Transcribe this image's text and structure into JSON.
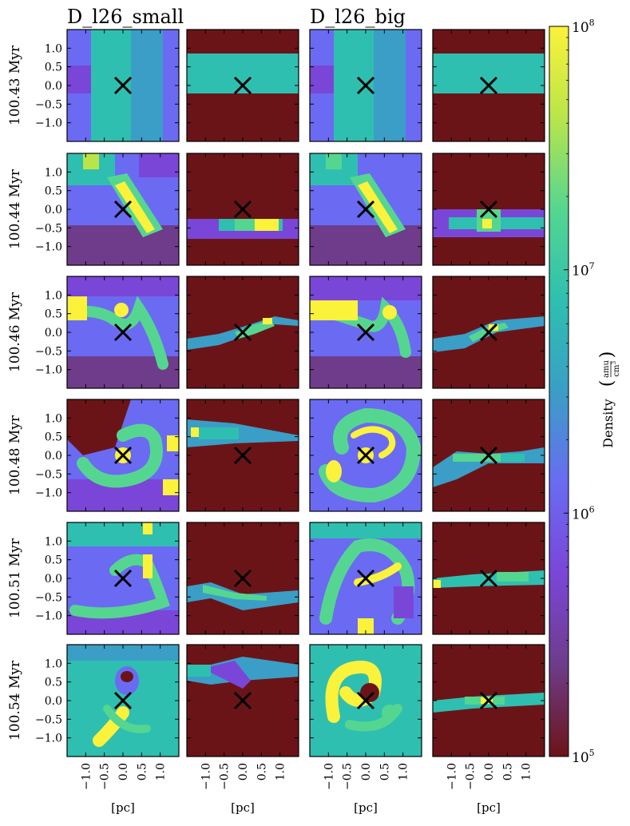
{
  "chart_data": {
    "type": "heatmap",
    "column_titles": [
      "D_l26_small",
      "D_l26_big"
    ],
    "row_labels": [
      "100.43 Myr",
      "100.44 Myr",
      "100.46 Myr",
      "100.48 Myr",
      "100.51 Myr",
      "100.54 Myr"
    ],
    "xlabel": "[pc]",
    "x_ticks": [
      "−1.0",
      "−0.5",
      "0.0",
      "0.5",
      "1.0"
    ],
    "y_ticks": [
      "1.0",
      "0.5",
      "0.0",
      "−0.5",
      "−1.0"
    ],
    "xlim": [
      -1.5,
      1.5
    ],
    "ylim": [
      -1.5,
      1.5
    ],
    "marker": {
      "symbol": "X",
      "x": 0.0,
      "y": 0.0
    },
    "colorbar": {
      "label": "Density",
      "unit_numerator": "amu",
      "unit_denominator": "cm",
      "unit_exponent": "3",
      "scale": "log",
      "range": [
        100000,
        100000000
      ],
      "tick_base": "10",
      "tick_exponents": [
        "8",
        "7",
        "6",
        "5"
      ],
      "colors": [
        "#6b1418",
        "#6e3c8a",
        "#7a46d8",
        "#6a6bf2",
        "#3a9ec6",
        "#2fbfb0",
        "#55d690",
        "#b9e54a",
        "#fbf23b"
      ]
    },
    "panel_background": "#6b1418"
  }
}
